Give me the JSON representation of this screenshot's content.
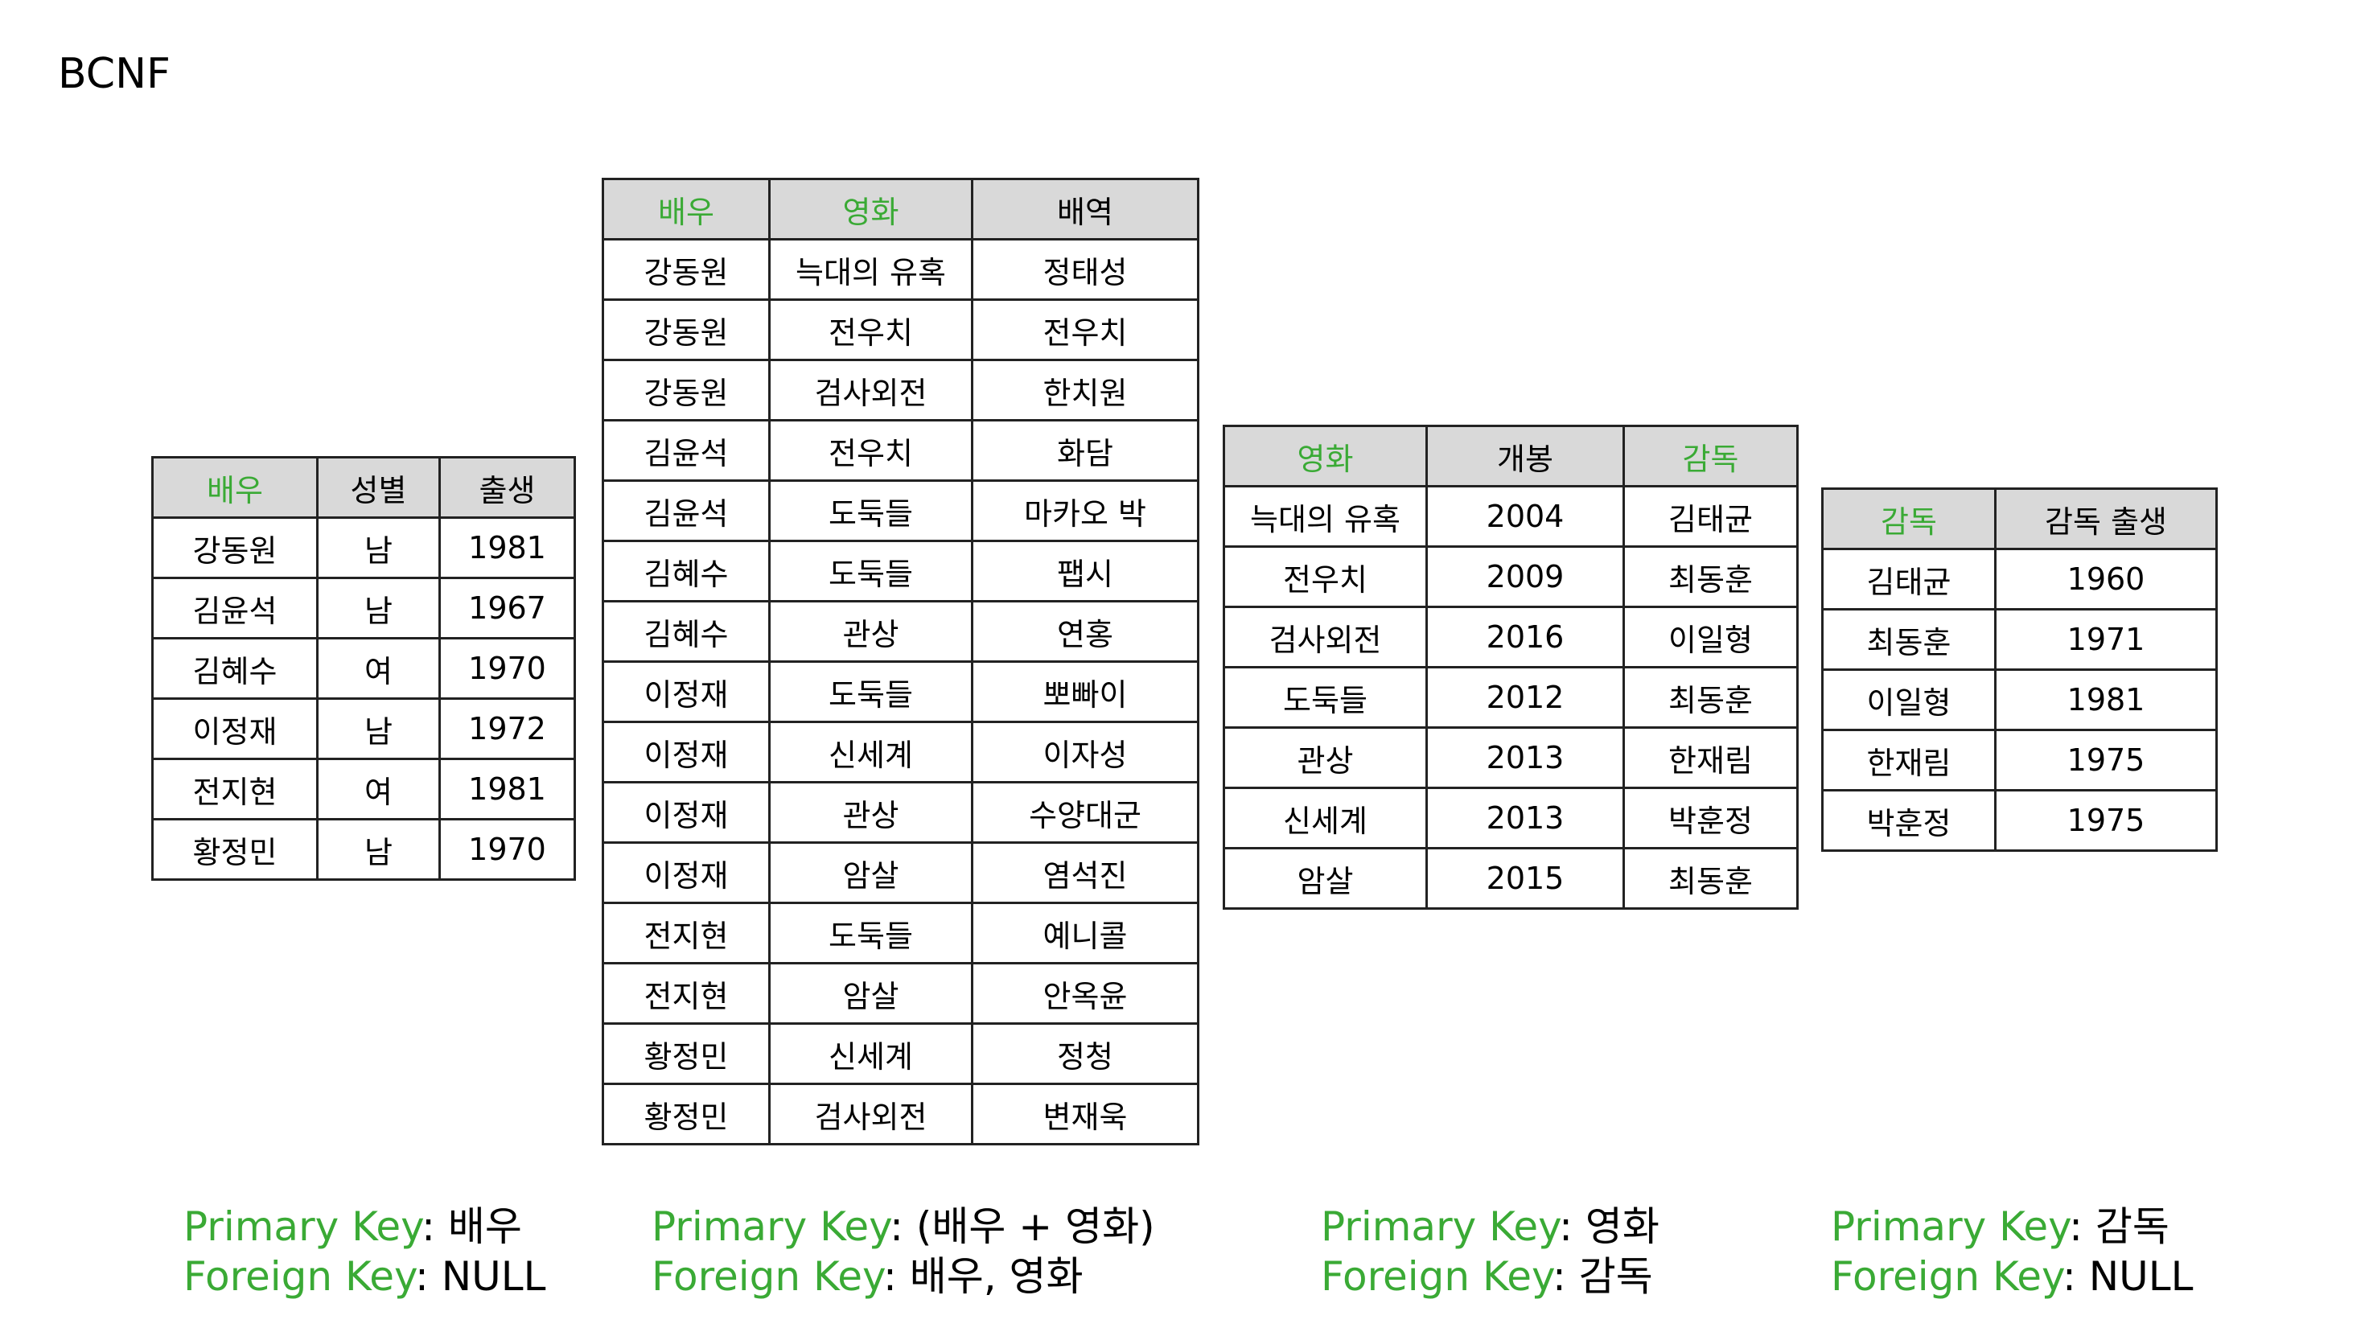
{
  "title": "BCNF",
  "key_labels": {
    "primary": "Primary Key",
    "foreign": "Foreign Key",
    "sep": ": "
  },
  "tables": {
    "actor": {
      "headers": [
        "배우",
        "성별",
        "출생"
      ],
      "rows": [
        [
          "강동원",
          "남",
          "1981"
        ],
        [
          "김윤석",
          "남",
          "1967"
        ],
        [
          "김혜수",
          "여",
          "1970"
        ],
        [
          "이정재",
          "남",
          "1972"
        ],
        [
          "전지현",
          "여",
          "1981"
        ],
        [
          "황정민",
          "남",
          "1970"
        ]
      ],
      "primary_key": "배우",
      "foreign_key": "NULL"
    },
    "cast": {
      "headers": [
        "배우",
        "영화",
        "배역"
      ],
      "rows": [
        [
          "강동원",
          "늑대의 유혹",
          "정태성"
        ],
        [
          "강동원",
          "전우치",
          "전우치"
        ],
        [
          "강동원",
          "검사외전",
          "한치원"
        ],
        [
          "김윤석",
          "전우치",
          "화담"
        ],
        [
          "김윤석",
          "도둑들",
          "마카오 박"
        ],
        [
          "김혜수",
          "도둑들",
          "팹시"
        ],
        [
          "김혜수",
          "관상",
          "연홍"
        ],
        [
          "이정재",
          "도둑들",
          "뽀빠이"
        ],
        [
          "이정재",
          "신세계",
          "이자성"
        ],
        [
          "이정재",
          "관상",
          "수양대군"
        ],
        [
          "이정재",
          "암살",
          "염석진"
        ],
        [
          "전지현",
          "도둑들",
          "예니콜"
        ],
        [
          "전지현",
          "암살",
          "안옥윤"
        ],
        [
          "황정민",
          "신세계",
          "정청"
        ],
        [
          "황정민",
          "검사외전",
          "변재욱"
        ]
      ],
      "primary_key": "(배우 + 영화)",
      "foreign_key": "배우, 영화"
    },
    "movie": {
      "headers": [
        "영화",
        "개봉",
        "감독"
      ],
      "rows": [
        [
          "늑대의 유혹",
          "2004",
          "김태균"
        ],
        [
          "전우치",
          "2009",
          "최동훈"
        ],
        [
          "검사외전",
          "2016",
          "이일형"
        ],
        [
          "도둑들",
          "2012",
          "최동훈"
        ],
        [
          "관상",
          "2013",
          "한재림"
        ],
        [
          "신세계",
          "2013",
          "박훈정"
        ],
        [
          "암살",
          "2015",
          "최동훈"
        ]
      ],
      "primary_key": "영화",
      "foreign_key": "감독"
    },
    "director": {
      "headers": [
        "감독",
        "감독 출생"
      ],
      "rows": [
        [
          "김태균",
          "1960"
        ],
        [
          "최동훈",
          "1971"
        ],
        [
          "이일형",
          "1981"
        ],
        [
          "한재림",
          "1975"
        ],
        [
          "박훈정",
          "1975"
        ]
      ],
      "primary_key": "감독",
      "foreign_key": "NULL"
    }
  }
}
